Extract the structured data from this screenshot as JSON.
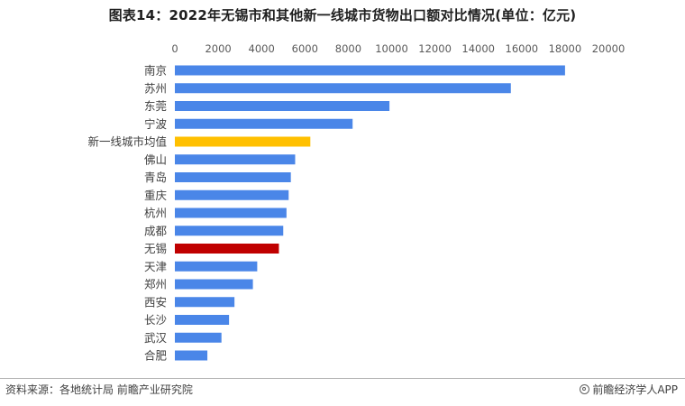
{
  "title": "图表14：2022年无锡市和其他新一线城市货物出口额对比情况(单位：亿元)",
  "source": "资料来源：各地统计局 前瞻产业研究院",
  "brand": "前瞻经济学人APP",
  "colors": {
    "default": "#4a86e8",
    "average": "#ffc000",
    "highlight": "#c00000"
  },
  "chart_data": {
    "type": "bar",
    "orientation": "horizontal",
    "xlim": [
      0,
      20000
    ],
    "ticks": [
      0,
      2000,
      4000,
      6000,
      8000,
      10000,
      12000,
      14000,
      16000,
      18000,
      20000
    ],
    "axis_position": "top",
    "grid": false,
    "categories": [
      "南京",
      "苏州",
      "东莞",
      "宁波",
      "新一线城市均值",
      "佛山",
      "青岛",
      "重庆",
      "杭州",
      "成都",
      "无锡",
      "天津",
      "郑州",
      "西安",
      "长沙",
      "武汉",
      "合肥"
    ],
    "values": [
      18000,
      15500,
      9900,
      8200,
      6250,
      5550,
      5350,
      5250,
      5150,
      5000,
      4800,
      3800,
      3600,
      2750,
      2500,
      2150,
      1500
    ],
    "highlight": {
      "新一线城市均值": "average",
      "无锡": "highlight"
    }
  }
}
